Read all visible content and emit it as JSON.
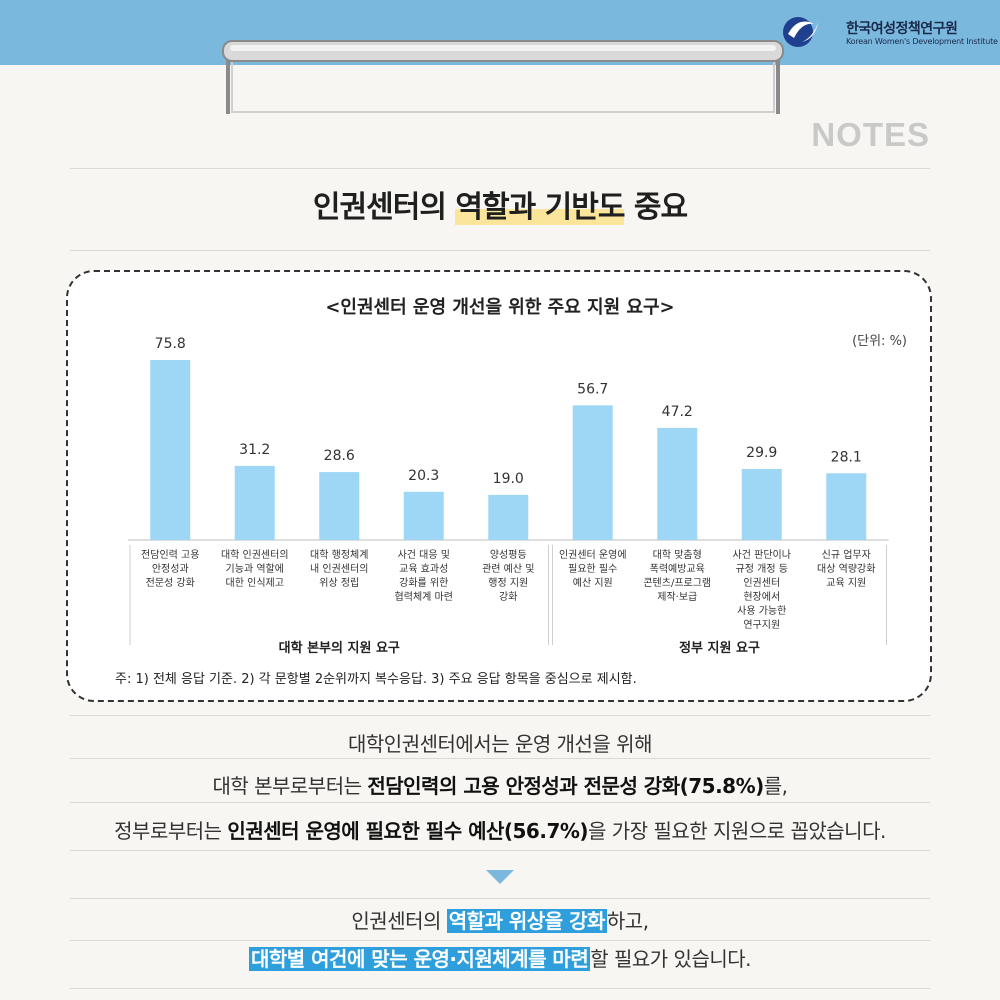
{
  "header": {
    "org_name_ko": "한국여성정책연구원",
    "org_name_en": "Korean Women's Development Institute",
    "notes_label": "NOTES",
    "colors": {
      "top_bar": "#7ab8de",
      "bar_fill": "#9ed7f6",
      "highlight_blue": "#2e9fdc",
      "highlight_yellow": "#fbe59a"
    }
  },
  "title": {
    "prefix": "인권센터의 ",
    "highlight": "역할과 기반도",
    "suffix": " 중요"
  },
  "chart_box": {
    "title": "<인권센터 운영 개선을 위한 주요 지원 요구>",
    "unit": "(단위: %)",
    "footnote": "주: 1) 전체 응답 기준. 2) 각 문항별 2순위까지 복수응답. 3) 주요 응답 항목을 중심으로 제시함."
  },
  "chart_data": {
    "type": "bar",
    "title": "<인권센터 운영 개선을 위한 주요 지원 요구>",
    "unit": "(단위: %)",
    "ylim": [
      0,
      80
    ],
    "groups": [
      {
        "label": "대학 본부의 지원 요구",
        "count": 5
      },
      {
        "label": "정부 지원 요구",
        "count": 4
      }
    ],
    "categories": [
      [
        "전담인력 고용",
        "안정성과",
        "전문성 강화"
      ],
      [
        "대학 인권센터의",
        "기능과 역할에",
        "대한 인식제고"
      ],
      [
        "대학 행정체계",
        "내 인권센터의",
        "위상 정립"
      ],
      [
        "사건 대응 및",
        "교육 효과성",
        "강화를 위한",
        "협력체계 마련"
      ],
      [
        "양성평등",
        "관련 예산 및",
        "행정 지원",
        "강화"
      ],
      [
        "인권센터 운영에",
        "필요한 필수",
        "예산 지원"
      ],
      [
        "대학 맞춤형",
        "폭력예방교육",
        "콘텐츠/프로그램",
        "제작·보급"
      ],
      [
        "사건 판단이나",
        "규정 개정 등",
        "인권센터",
        "현장에서",
        "사용 가능한",
        "연구지원"
      ],
      [
        "신규 업무자",
        "대상 역량강화",
        "교육 지원"
      ]
    ],
    "values": [
      75.8,
      31.2,
      28.6,
      20.3,
      19.0,
      56.7,
      47.2,
      29.9,
      28.1
    ],
    "value_labels": [
      "75.8",
      "31.2",
      "28.6",
      "20.3",
      "19.0",
      "56.7",
      "47.2",
      "29.9",
      "28.1"
    ]
  },
  "summary": {
    "line1": "대학인권센터에서는 운영 개선을 위해",
    "line2_pre": "대학 본부로부터는 ",
    "line2_bold": "전담인력의 고용 안정성과 전문성 강화(75.8%)",
    "line2_post": "를,",
    "line3_pre": "정부로부터는 ",
    "line3_bold": "인권센터 운영에 필요한 필수 예산(56.7%)",
    "line3_post": "을 가장 필요한 지원으로 꼽았습니다."
  },
  "conclusion": {
    "line1_pre": "인권센터의 ",
    "line1_hl": "역할과 위상을 강화",
    "line1_post": "하고,",
    "line2_hl": "대학별 여건에 맞는 운영·지원체계를 마련",
    "line2_post": "할 필요가 있습니다."
  }
}
